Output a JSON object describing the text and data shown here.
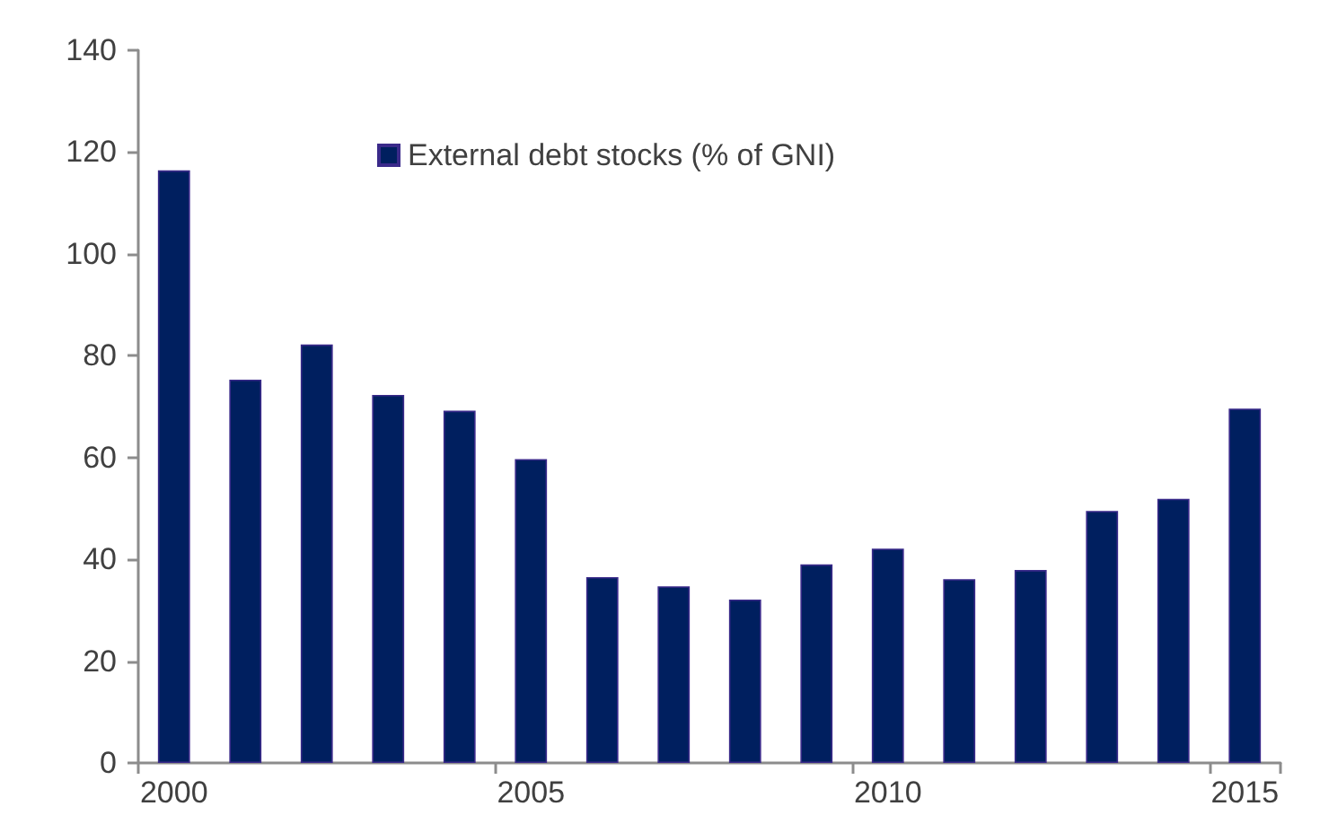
{
  "chart_data": {
    "type": "bar",
    "categories": [
      "2000",
      null,
      null,
      null,
      null,
      "2005",
      null,
      null,
      null,
      null,
      "2010",
      null,
      null,
      null,
      null,
      "2015"
    ],
    "series": [
      {
        "name": "External debt stocks (% of GNI)",
        "color": "#001f5f",
        "values": [
          116.4,
          75.3,
          82.2,
          72.3,
          69.2,
          59.7,
          36.5,
          34.7,
          32.1,
          39.0,
          42.1,
          36.1,
          37.9,
          49.5,
          51.9,
          69.6
        ]
      }
    ],
    "ylim": [
      0,
      140
    ],
    "yticks": [
      0,
      20,
      40,
      60,
      80,
      100,
      120,
      140
    ],
    "grid": false,
    "legend": "top"
  }
}
